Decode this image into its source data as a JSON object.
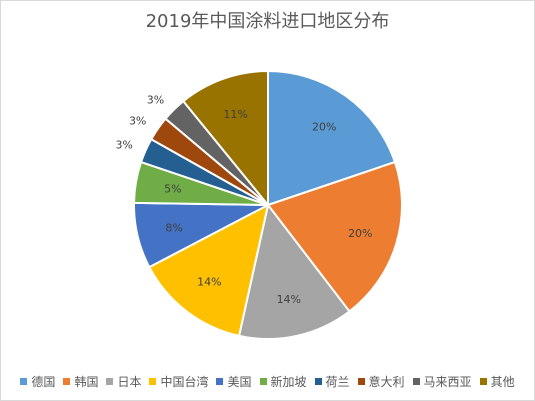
{
  "chart_data": {
    "type": "pie",
    "title": "2019年中国涂料进口地区分布",
    "categories": [
      "德国",
      "韩国",
      "日本",
      "中国台湾",
      "美国",
      "新加坡",
      "荷兰",
      "意大利",
      "马来西亚",
      "其他"
    ],
    "values": [
      20,
      20,
      14,
      14,
      8,
      5,
      3,
      3,
      3,
      11
    ],
    "labels": [
      "20%",
      "20%",
      "14%",
      "14%",
      "8%",
      "5%",
      "3%",
      "3%",
      "3%",
      "11%"
    ],
    "colors": [
      "#5b9bd5",
      "#ed7d31",
      "#a5a5a5",
      "#ffc000",
      "#4472c4",
      "#70ad47",
      "#255e91",
      "#9e480e",
      "#636363",
      "#997300"
    ],
    "legend_position": "bottom"
  }
}
